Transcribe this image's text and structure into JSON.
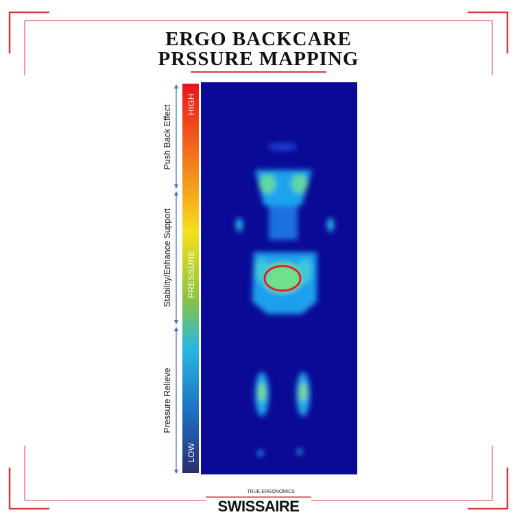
{
  "header": {
    "title": [
      "ERGO BACKCARE",
      "PRSSURE MAPPING"
    ]
  },
  "scale": {
    "high": "HIGH",
    "middle": "PRESSURE",
    "low": "LOW"
  },
  "zones": [
    "Push Back Effect",
    "Stability/Enhance Support",
    "Pressure Relieve"
  ],
  "footer": {
    "tagline": "TRUE ERGONOMICS",
    "brand": "SWISSAIRE"
  }
}
